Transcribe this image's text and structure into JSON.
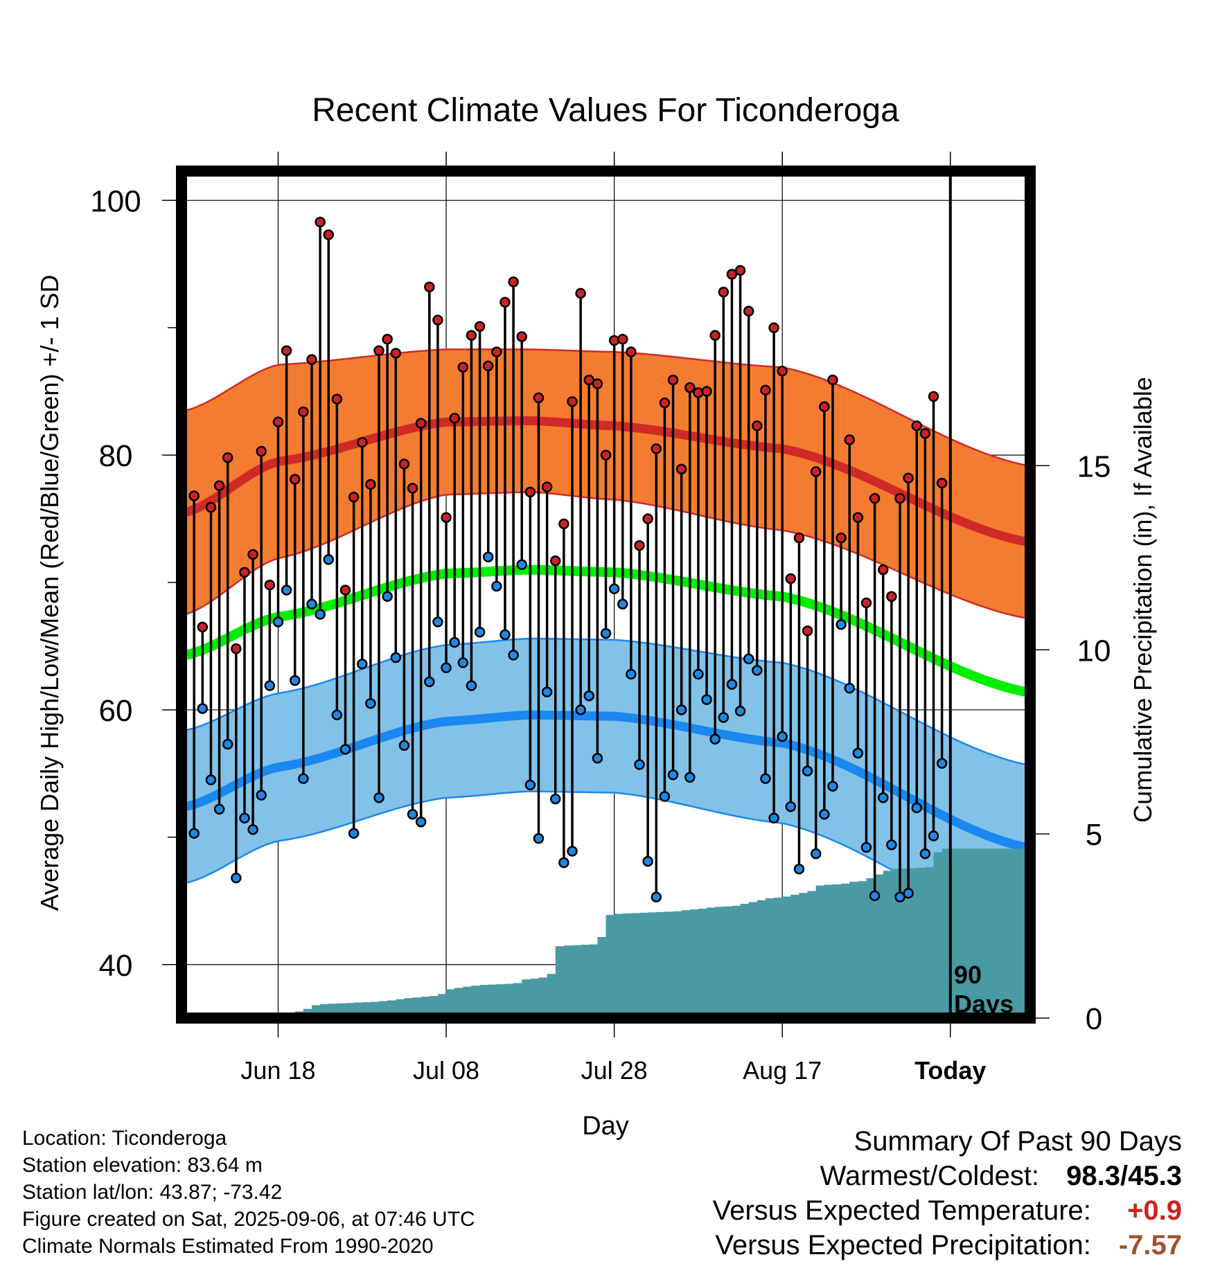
{
  "chart_data": {
    "type": "line",
    "title": "Recent Climate Values For Ticonderoga",
    "xlabel": "Day",
    "ylabel": "Average Daily High/Low/Mean (Red/Blue/Green) +/- 1 SD",
    "y2label": "Cumulative Precipitation (in), If Available",
    "ylim": [
      35.8,
      102.3
    ],
    "y2lim": [
      0,
      23
    ],
    "xlim": [
      -1.5,
      99.5
    ],
    "yticks": [
      40,
      60,
      80,
      100
    ],
    "y2ticks": [
      0,
      5,
      10,
      15
    ],
    "xticks": [
      {
        "label": "Jun 18",
        "day": 10
      },
      {
        "label": "Jul 08",
        "day": 30
      },
      {
        "label": "Jul 28",
        "day": 50
      },
      {
        "label": "Aug 17",
        "day": 70
      },
      {
        "label": "Today",
        "day": 90
      }
    ],
    "today_marker": {
      "day": 90,
      "label_line1": "90",
      "label_line2": "Days"
    },
    "grid": true,
    "colors": {
      "high_band": "#f47c30",
      "high_line": "#d02a28",
      "low_band": "#82c2e8",
      "low_line": "#1a88f0",
      "mean_line": "#00ee00",
      "precip": "#4a9aa3",
      "high_dot": "#cc2222",
      "low_dot": "#1e88e5"
    },
    "normals": {
      "high": {
        "days": [
          -1,
          10,
          30,
          40,
          50,
          70,
          99
        ],
        "mean": [
          75.5,
          79.5,
          82.6,
          82.7,
          82.3,
          80.5,
          73.2
        ],
        "sd": [
          8.0,
          7.6,
          5.7,
          5.6,
          5.8,
          6.4,
          6.0
        ]
      },
      "low": {
        "days": [
          -1,
          10,
          30,
          40,
          50,
          70,
          99
        ],
        "mean": [
          52.4,
          55.5,
          59.1,
          59.6,
          59.5,
          57.4,
          49.2
        ],
        "sd": [
          6.0,
          5.8,
          6.0,
          6.0,
          6.0,
          6.3,
          6.5
        ]
      },
      "mean": {
        "days": [
          -1,
          10,
          30,
          40,
          50,
          70,
          99
        ],
        "values": [
          64.3,
          67.3,
          70.7,
          71.0,
          70.8,
          68.9,
          61.4
        ]
      }
    },
    "series": [
      {
        "name": "High",
        "values": [
          76.8,
          66.5,
          75.9,
          77.6,
          79.8,
          64.8,
          70.8,
          72.2,
          80.3,
          69.8,
          82.6,
          88.2,
          78.1,
          83.4,
          87.5,
          98.3,
          97.3,
          84.4,
          69.4,
          76.7,
          81.0,
          77.7,
          88.2,
          89.1,
          88.0,
          79.3,
          77.4,
          82.5,
          93.2,
          90.6,
          75.1,
          82.9,
          86.9,
          89.4,
          90.1,
          87.0,
          88.1,
          92.0,
          93.6,
          89.3,
          77.1,
          84.5,
          77.5,
          71.7,
          74.6,
          84.2,
          92.7,
          85.9,
          85.6,
          80.0,
          89.0,
          89.1,
          88.1,
          72.9,
          75.0,
          80.5,
          84.1,
          85.9,
          78.9,
          85.3,
          84.9,
          85.0,
          89.4,
          92.8,
          94.2,
          94.5,
          91.3,
          82.3,
          85.1,
          90.0,
          86.6,
          70.3,
          73.5,
          66.2,
          78.7,
          83.8,
          85.9,
          73.5,
          81.2,
          75.1,
          68.4,
          76.6,
          71.0,
          68.9,
          76.6,
          78.2,
          82.3,
          81.7,
          84.6,
          77.8
        ]
      },
      {
        "name": "Low",
        "values": [
          50.3,
          60.1,
          54.5,
          52.2,
          57.3,
          46.8,
          51.5,
          50.6,
          53.3,
          61.9,
          66.9,
          69.4,
          62.3,
          54.6,
          68.3,
          67.5,
          71.8,
          59.6,
          56.9,
          50.3,
          63.6,
          60.5,
          53.1,
          68.9,
          64.1,
          57.2,
          51.8,
          51.2,
          62.2,
          66.9,
          63.3,
          65.3,
          63.7,
          61.9,
          66.1,
          72.0,
          69.7,
          65.9,
          64.3,
          71.4,
          54.1,
          49.9,
          61.4,
          53.0,
          48.0,
          48.9,
          60.0,
          61.1,
          56.2,
          66.0,
          69.5,
          68.3,
          62.8,
          55.7,
          48.1,
          45.3,
          53.2,
          54.9,
          60.0,
          54.7,
          62.8,
          60.8,
          57.7,
          59.4,
          62.0,
          59.9,
          64.0,
          63.1,
          54.6,
          51.5,
          57.9,
          52.4,
          47.5,
          55.2,
          48.7,
          51.8,
          54.0,
          66.7,
          61.7,
          56.6,
          49.2,
          45.4,
          53.1,
          49.4,
          45.3,
          45.6,
          52.3,
          48.7,
          50.1,
          55.8
        ]
      },
      {
        "name": "Cumulative Precipitation",
        "values": [
          0,
          0,
          0,
          0,
          0,
          0,
          0,
          0,
          0,
          0,
          0.06,
          0.12,
          0.18,
          0.25,
          0.35,
          0.38,
          0.39,
          0.4,
          0.41,
          0.42,
          0.43,
          0.44,
          0.46,
          0.48,
          0.51,
          0.54,
          0.56,
          0.58,
          0.6,
          0.65,
          0.78,
          0.82,
          0.85,
          0.88,
          0.9,
          0.91,
          0.92,
          0.93,
          0.95,
          1.05,
          1.07,
          1.1,
          1.2,
          1.95,
          1.97,
          1.98,
          1.99,
          2.0,
          2.2,
          2.8,
          2.83,
          2.84,
          2.85,
          2.86,
          2.87,
          2.88,
          2.89,
          2.9,
          2.93,
          2.95,
          2.97,
          3.0,
          3.02,
          3.03,
          3.05,
          3.1,
          3.15,
          3.2,
          3.25,
          3.27,
          3.3,
          3.35,
          3.4,
          3.45,
          3.6,
          3.62,
          3.63,
          3.65,
          3.7,
          3.72,
          3.8,
          3.9,
          4.0,
          4.05,
          4.06,
          4.07,
          4.08,
          4.1,
          4.5,
          4.6,
          4.6
        ]
      }
    ]
  },
  "info": {
    "location": "Location: Ticonderoga",
    "elevation": "Station elevation: 83.64 m",
    "latlon": "Station lat/lon: 43.87; -73.42",
    "created": "Figure created on Sat, 2025-09-06, at 07:46 UTC",
    "normals": "Climate Normals Estimated From 1990-2020"
  },
  "summary": {
    "title": "Summary Of Past 90 Days",
    "warm_cold_label": "Warmest/Coldest:",
    "warm_cold_value": "98.3/45.3",
    "temp_label": "Versus Expected Temperature:",
    "temp_value": "+0.9",
    "temp_color": "#cc2222",
    "precip_label": "Versus Expected Precipitation:",
    "precip_value": "-7.57",
    "precip_color": "#a0522d"
  }
}
